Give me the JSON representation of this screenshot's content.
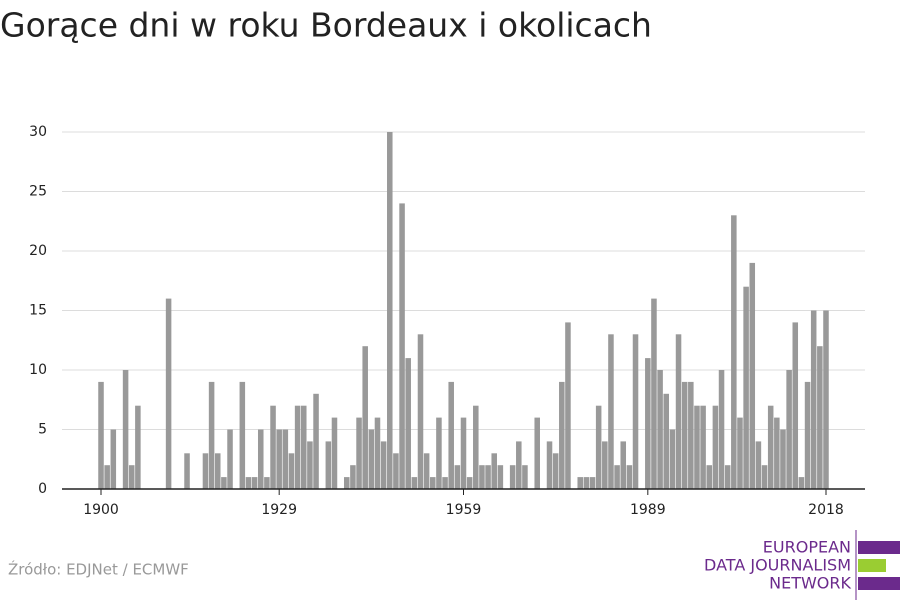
{
  "chart_data": {
    "type": "bar",
    "title": "Gorące dni w roku Bordeaux i okolicach",
    "x": [
      1900,
      1901,
      1902,
      1903,
      1904,
      1905,
      1906,
      1907,
      1908,
      1909,
      1910,
      1911,
      1912,
      1913,
      1914,
      1915,
      1916,
      1917,
      1918,
      1919,
      1920,
      1921,
      1922,
      1923,
      1924,
      1925,
      1926,
      1927,
      1928,
      1929,
      1930,
      1931,
      1932,
      1933,
      1934,
      1935,
      1936,
      1937,
      1938,
      1939,
      1940,
      1941,
      1942,
      1943,
      1944,
      1945,
      1946,
      1947,
      1948,
      1949,
      1950,
      1951,
      1952,
      1953,
      1954,
      1955,
      1956,
      1957,
      1958,
      1959,
      1960,
      1961,
      1962,
      1963,
      1964,
      1965,
      1966,
      1967,
      1968,
      1969,
      1970,
      1971,
      1972,
      1973,
      1974,
      1975,
      1976,
      1977,
      1978,
      1979,
      1980,
      1981,
      1982,
      1983,
      1984,
      1985,
      1986,
      1987,
      1988,
      1989,
      1990,
      1991,
      1992,
      1993,
      1994,
      1995,
      1996,
      1997,
      1998,
      1999,
      2000,
      2001,
      2002,
      2003,
      2004,
      2005,
      2006,
      2007,
      2008,
      2009,
      2010,
      2011,
      2012,
      2013,
      2014,
      2015,
      2016,
      2017,
      2018
    ],
    "values": [
      9,
      2,
      5,
      0,
      10,
      2,
      7,
      0,
      0,
      0,
      0,
      16,
      0,
      0,
      3,
      0,
      0,
      3,
      9,
      3,
      1,
      5,
      0,
      9,
      1,
      1,
      5,
      1,
      7,
      5,
      5,
      3,
      7,
      7,
      4,
      8,
      0,
      4,
      6,
      0,
      1,
      2,
      6,
      12,
      5,
      6,
      4,
      30,
      3,
      24,
      11,
      1,
      13,
      3,
      1,
      6,
      1,
      9,
      2,
      6,
      1,
      7,
      2,
      2,
      3,
      2,
      0,
      2,
      4,
      2,
      0,
      6,
      0,
      4,
      3,
      9,
      14,
      0,
      1,
      1,
      1,
      7,
      4,
      13,
      2,
      4,
      2,
      13,
      0,
      11,
      16,
      10,
      8,
      5,
      13,
      9,
      9,
      7,
      7,
      2,
      7,
      10,
      2,
      23,
      6,
      17,
      19,
      4,
      2,
      7,
      6,
      5,
      10,
      14,
      1,
      9,
      15,
      12,
      15
    ],
    "color": "#999999",
    "xlim": [
      1893.65,
      2024.35
    ],
    "xticks": [
      1900,
      1929,
      1959,
      1989,
      2018
    ],
    "ylim": [
      0,
      30
    ],
    "yticks": [
      0,
      5,
      10,
      15,
      20,
      25,
      30
    ],
    "grid": true,
    "source": "Źródło: EDJNet / ECMWF",
    "logo": [
      "EUROPEAN",
      "DATA JOURNALISM",
      "NETWORK"
    ]
  }
}
